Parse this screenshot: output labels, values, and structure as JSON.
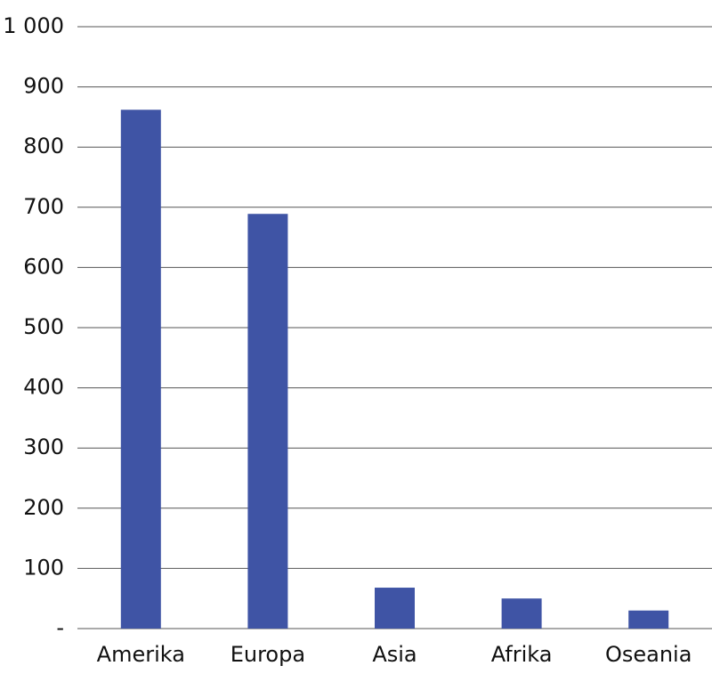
{
  "chart_data": {
    "type": "bar",
    "categories": [
      "Amerika",
      "Europa",
      "Asia",
      "Afrika",
      "Oseania"
    ],
    "values": [
      862,
      689,
      68,
      50,
      30
    ],
    "color": "#3f54a5",
    "ylim": [
      0,
      1000
    ],
    "yticks": [
      {
        "value": 0,
        "label": "-"
      },
      100,
      200,
      300,
      400,
      500,
      600,
      700,
      800,
      900,
      {
        "value": 1000,
        "label": "1 000"
      }
    ],
    "grid": true
  }
}
